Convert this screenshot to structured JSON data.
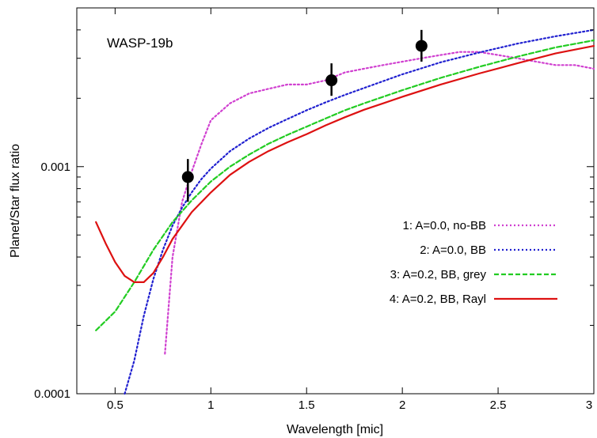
{
  "chart_data": {
    "type": "line",
    "title": "WASP-19b",
    "xlabel": "Wavelength [mic]",
    "ylabel": "Planet/Star flux ratio",
    "xlim": [
      0.3,
      3.0
    ],
    "ylim": [
      0.0001,
      0.005
    ],
    "yscale": "log",
    "grid": false,
    "legend_position": "center-right",
    "x_ticks": [
      {
        "value": 0.5,
        "label": "0.5"
      },
      {
        "value": 1.0,
        "label": "1"
      },
      {
        "value": 1.5,
        "label": "1.5"
      },
      {
        "value": 2.0,
        "label": "2"
      },
      {
        "value": 2.5,
        "label": "2.5"
      },
      {
        "value": 3.0,
        "label": "3"
      }
    ],
    "y_labeled_ticks": [
      {
        "value": 0.0001,
        "label": "0.0001"
      },
      {
        "value": 0.001,
        "label": "0.001"
      }
    ],
    "series": [
      {
        "name": "1: A=0.0, no-BB",
        "color": "#d040d0",
        "style": "dotted",
        "x": [
          0.76,
          0.8,
          0.85,
          0.9,
          0.95,
          1.0,
          1.1,
          1.2,
          1.3,
          1.4,
          1.5,
          1.6,
          1.7,
          1.8,
          1.9,
          2.0,
          2.1,
          2.2,
          2.3,
          2.4,
          2.5,
          2.6,
          2.7,
          2.8,
          2.9,
          3.0
        ],
        "y": [
          0.00015,
          0.0004,
          0.0007,
          0.00095,
          0.00125,
          0.0016,
          0.0019,
          0.0021,
          0.0022,
          0.0023,
          0.0023,
          0.0024,
          0.0026,
          0.0027,
          0.0028,
          0.0029,
          0.003,
          0.0031,
          0.0032,
          0.0032,
          0.0031,
          0.003,
          0.0029,
          0.0028,
          0.0028,
          0.0027
        ]
      },
      {
        "name": "2: A=0.0, BB",
        "color": "#2020d0",
        "style": "dotted",
        "x": [
          0.55,
          0.6,
          0.65,
          0.7,
          0.75,
          0.8,
          0.85,
          0.9,
          0.95,
          1.0,
          1.1,
          1.2,
          1.3,
          1.4,
          1.5,
          1.6,
          1.7,
          1.8,
          1.9,
          2.0,
          2.2,
          2.4,
          2.6,
          2.8,
          3.0
        ],
        "y": [
          0.0001,
          0.00014,
          0.00022,
          0.00032,
          0.00043,
          0.00055,
          0.00066,
          0.00077,
          0.00088,
          0.00098,
          0.00117,
          0.00133,
          0.00148,
          0.00162,
          0.00177,
          0.00192,
          0.00207,
          0.00222,
          0.00238,
          0.00255,
          0.00288,
          0.00318,
          0.00348,
          0.00375,
          0.004
        ]
      },
      {
        "name": "3: A=0.2, BB, grey",
        "color": "#22cc22",
        "style": "dashed",
        "x": [
          0.4,
          0.5,
          0.6,
          0.7,
          0.8,
          0.9,
          1.0,
          1.1,
          1.2,
          1.3,
          1.4,
          1.5,
          1.6,
          1.7,
          1.8,
          1.9,
          2.0,
          2.2,
          2.4,
          2.6,
          2.8,
          3.0
        ],
        "y": [
          0.00019,
          0.00023,
          0.00031,
          0.00043,
          0.00057,
          0.00071,
          0.00086,
          0.001,
          0.00113,
          0.00126,
          0.00138,
          0.0015,
          0.00163,
          0.00177,
          0.0019,
          0.00203,
          0.00217,
          0.00246,
          0.00275,
          0.00305,
          0.00335,
          0.0036
        ]
      },
      {
        "name": "4: A=0.2, BB, Rayl",
        "color": "#dd1111",
        "style": "solid",
        "x": [
          0.4,
          0.45,
          0.5,
          0.55,
          0.6,
          0.65,
          0.7,
          0.75,
          0.8,
          0.9,
          1.0,
          1.1,
          1.2,
          1.3,
          1.4,
          1.5,
          1.6,
          1.7,
          1.8,
          1.9,
          2.0,
          2.2,
          2.4,
          2.6,
          2.8,
          3.0
        ],
        "y": [
          0.00057,
          0.00046,
          0.00038,
          0.00033,
          0.00031,
          0.00031,
          0.00034,
          0.0004,
          0.00048,
          0.00063,
          0.00077,
          0.00092,
          0.00105,
          0.00117,
          0.00128,
          0.00139,
          0.00152,
          0.00165,
          0.00178,
          0.0019,
          0.00203,
          0.0023,
          0.00257,
          0.00285,
          0.00315,
          0.0034
        ]
      }
    ],
    "observations": {
      "color": "#000000",
      "points": [
        {
          "x": 0.88,
          "y": 0.0009,
          "ylo": 0.0007,
          "yhi": 0.00108
        },
        {
          "x": 1.63,
          "y": 0.0024,
          "ylo": 0.00205,
          "yhi": 0.00285
        },
        {
          "x": 2.1,
          "y": 0.0034,
          "ylo": 0.0029,
          "yhi": 0.004
        }
      ]
    }
  }
}
